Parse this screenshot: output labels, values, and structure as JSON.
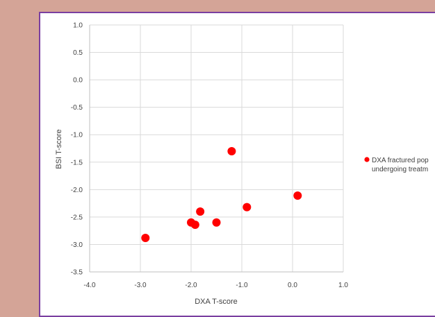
{
  "chart_data": {
    "type": "scatter",
    "title": "",
    "xlabel": "DXA T-score",
    "ylabel": "BSI T-score",
    "xlim": [
      -4.0,
      1.0
    ],
    "ylim": [
      -3.5,
      1.0
    ],
    "x_ticks": [
      "-4.0",
      "-3.0",
      "-2.0",
      "-1.0",
      "0.0",
      "1.0"
    ],
    "x_tick_values": [
      -4,
      -3,
      -2,
      -1,
      0,
      1
    ],
    "y_ticks": [
      "1.0",
      "0.5",
      "0.0",
      "-0.5",
      "-1.0",
      "-1.5",
      "-2.0",
      "-2.5",
      "-3.0",
      "-3.5"
    ],
    "y_tick_values": [
      1,
      0.5,
      0,
      -0.5,
      -1,
      -1.5,
      -2,
      -2.5,
      -3,
      -3.5
    ],
    "grid": true,
    "legend_position": "right",
    "series": [
      {
        "name_lines": [
          "DXA fractured pop",
          "undergoing treatm"
        ],
        "color": "#ff0000",
        "points": [
          {
            "x": -2.9,
            "y": -2.88
          },
          {
            "x": -2.0,
            "y": -2.6
          },
          {
            "x": -1.92,
            "y": -2.64
          },
          {
            "x": -1.82,
            "y": -2.4
          },
          {
            "x": -1.5,
            "y": -2.6
          },
          {
            "x": -1.2,
            "y": -1.3
          },
          {
            "x": -0.9,
            "y": -2.32
          },
          {
            "x": 0.1,
            "y": -2.11
          }
        ]
      }
    ]
  }
}
